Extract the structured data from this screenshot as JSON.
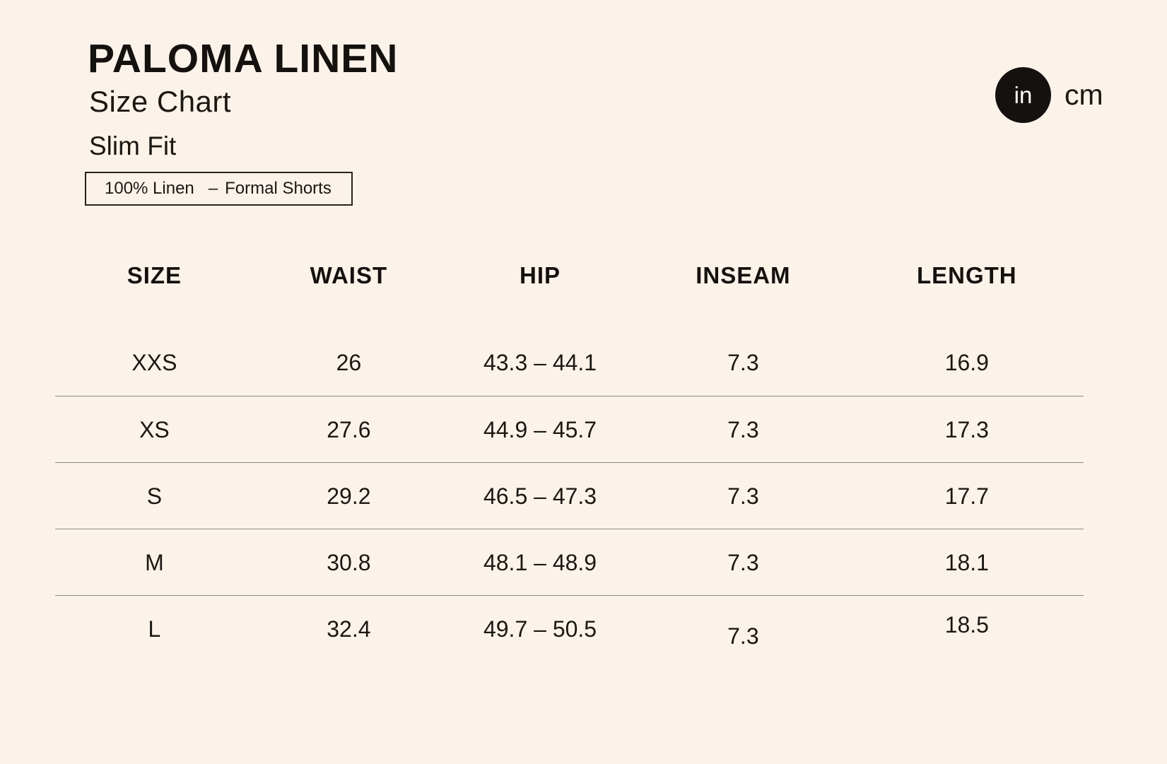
{
  "colors": {
    "background": "#FBF3EA",
    "text": "#1B1713",
    "divider": "#8D8A86",
    "toggle_active_bg": "#14110F",
    "toggle_active_text": "#FFFFFF"
  },
  "header": {
    "title": "PALOMA LINEN",
    "subtitle": "Size Chart",
    "fit": "Slim Fit"
  },
  "chip": {
    "material": "100% Linen",
    "separator": "–",
    "category": "Formal Shorts"
  },
  "unit_toggle": {
    "selected": "in",
    "inches_label": "in",
    "cm_label": "cm"
  },
  "table": {
    "columns": [
      "SIZE",
      "WAIST",
      "HIP",
      "INSEAM",
      "LENGTH"
    ],
    "rows": [
      [
        "XXS",
        "26",
        "43.3 – 44.1",
        "7.3",
        "16.9"
      ],
      [
        "XS",
        "27.6",
        "44.9 – 45.7",
        "7.3",
        "17.3"
      ],
      [
        "S",
        "29.2",
        "46.5 – 47.3",
        "7.3",
        "17.7"
      ],
      [
        "M",
        "30.8",
        "48.1 – 48.9",
        "7.3",
        "18.1"
      ],
      [
        "L",
        "32.4",
        "49.7 – 50.5",
        "7.3",
        "18.5"
      ]
    ]
  }
}
